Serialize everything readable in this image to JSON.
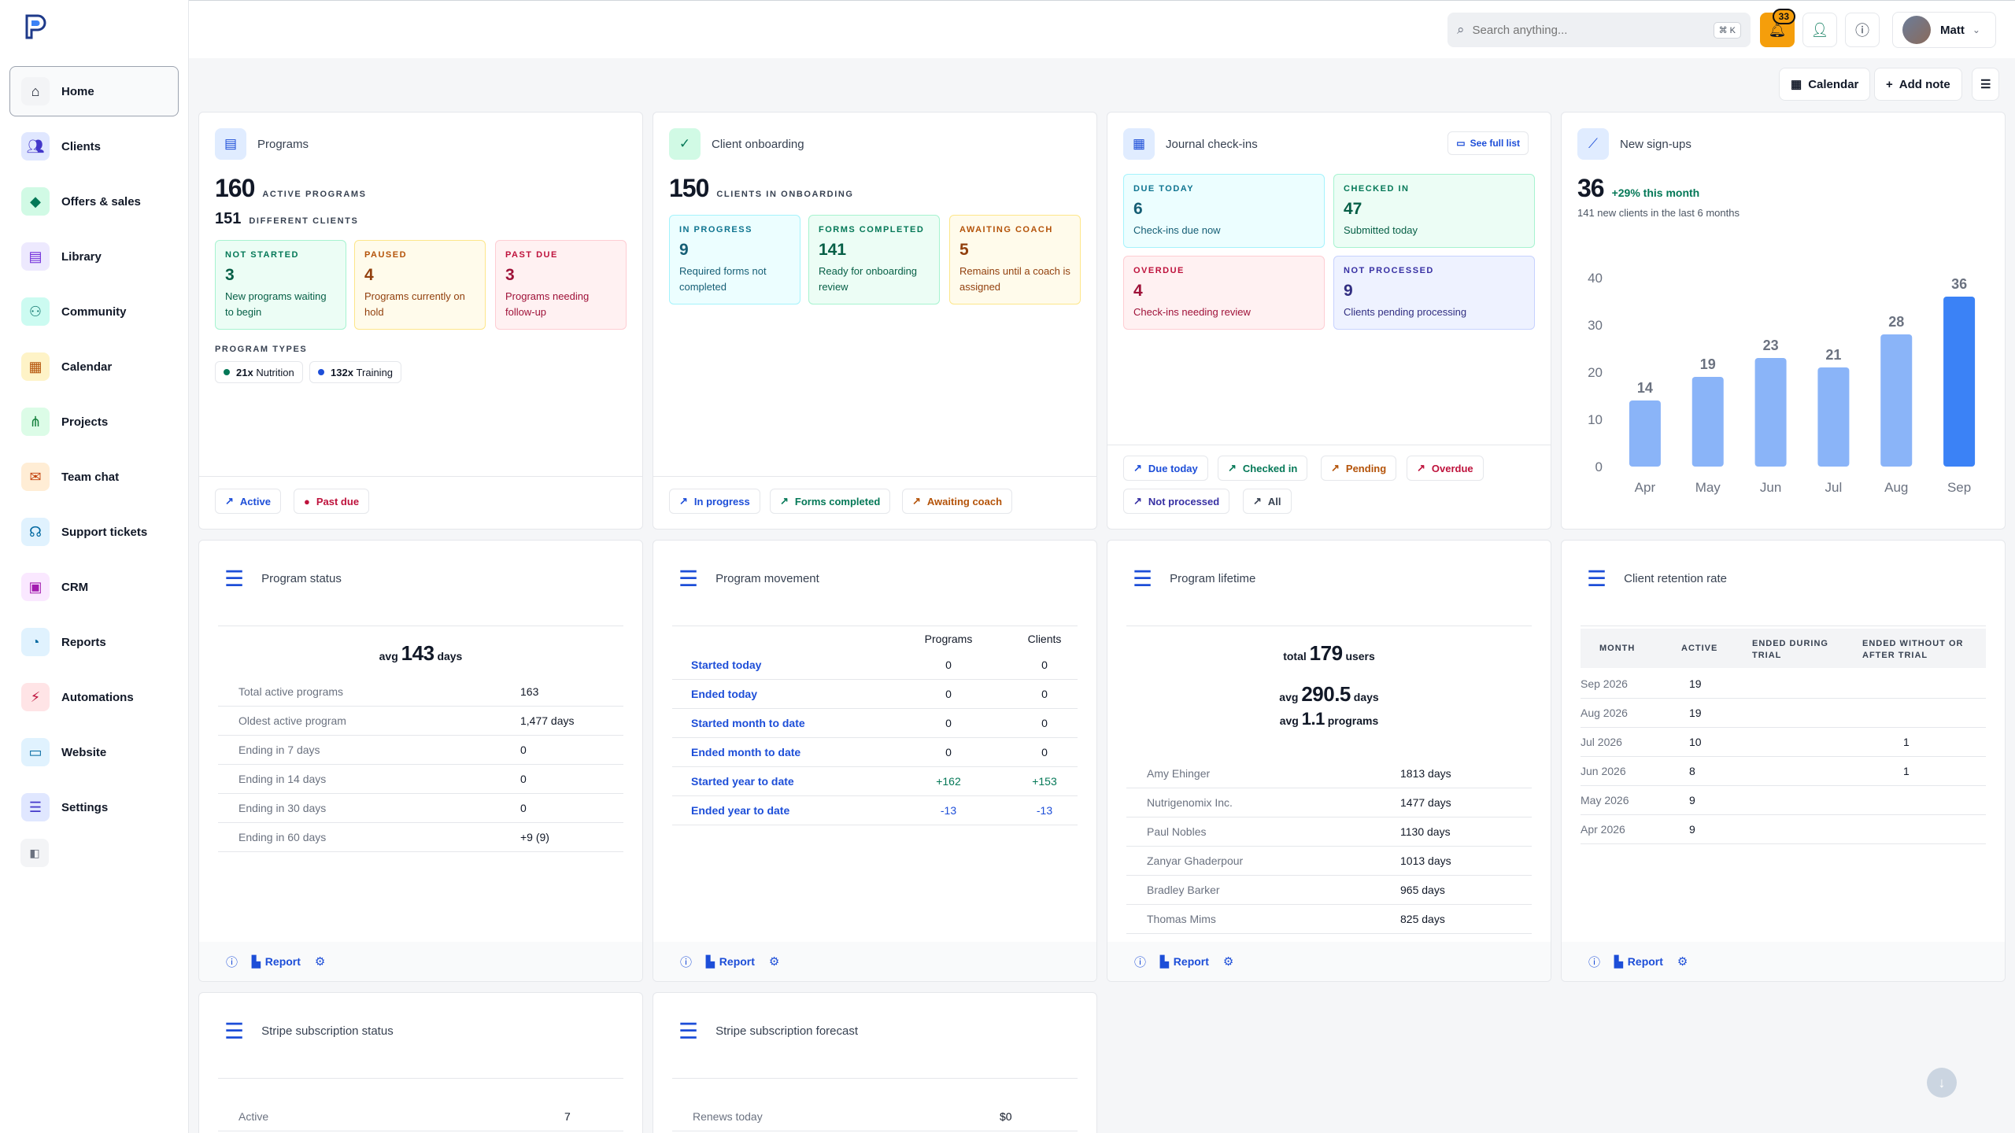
{
  "nav": {
    "items": [
      {
        "label": "Home",
        "icon": "home-icon"
      },
      {
        "label": "Clients",
        "icon": "users-icon"
      },
      {
        "label": "Offers & sales",
        "icon": "layers-icon"
      },
      {
        "label": "Library",
        "icon": "library-icon"
      },
      {
        "label": "Community",
        "icon": "community-icon"
      },
      {
        "label": "Calendar",
        "icon": "calendar-icon"
      },
      {
        "label": "Projects",
        "icon": "projects-icon"
      },
      {
        "label": "Team chat",
        "icon": "chat-icon"
      },
      {
        "label": "Support tickets",
        "icon": "headset-icon"
      },
      {
        "label": "CRM",
        "icon": "contact-icon"
      },
      {
        "label": "Reports",
        "icon": "pie-chart-icon"
      },
      {
        "label": "Automations",
        "icon": "bolt-icon"
      },
      {
        "label": "Website",
        "icon": "laptop-icon"
      },
      {
        "label": "Settings",
        "icon": "sliders-icon"
      }
    ]
  },
  "topbar": {
    "search_placeholder": "Search anything...",
    "search_shortcut": "⌘ K",
    "notifications_count": "33",
    "user_name": "Matt"
  },
  "actions": {
    "calendar": "Calendar",
    "add_note": "Add note"
  },
  "programs": {
    "title": "Programs",
    "active_count": "160",
    "active_label": "ACTIVE PROGRAMS",
    "clients_count": "151",
    "clients_label": "DIFFERENT CLIENTS",
    "tiles": [
      {
        "label": "NOT STARTED",
        "value": "3",
        "desc": "New programs waiting to begin"
      },
      {
        "label": "PAUSED",
        "value": "4",
        "desc": "Programs currently on hold"
      },
      {
        "label": "PAST DUE",
        "value": "3",
        "desc": "Programs needing follow-up"
      }
    ],
    "types_label": "PROGRAM TYPES",
    "types": [
      {
        "count": "21x",
        "name": "Nutrition"
      },
      {
        "count": "132x",
        "name": "Training"
      }
    ],
    "buttons": [
      "Active",
      "Past due"
    ]
  },
  "onboarding": {
    "title": "Client onboarding",
    "count": "150",
    "label": "CLIENTS IN ONBOARDING",
    "tiles": [
      {
        "label": "IN PROGRESS",
        "value": "9",
        "desc": "Required forms not completed"
      },
      {
        "label": "FORMS COMPLETED",
        "value": "141",
        "desc": "Ready for onboarding review"
      },
      {
        "label": "AWAITING COACH",
        "value": "5",
        "desc": "Remains until a coach is assigned"
      }
    ],
    "buttons": [
      "In progress",
      "Forms completed",
      "Awaiting coach"
    ]
  },
  "journal": {
    "title": "Journal check-ins",
    "see_full": "See full list",
    "tiles": [
      {
        "label": "DUE TODAY",
        "value": "6",
        "desc": "Check-ins due now"
      },
      {
        "label": "CHECKED IN",
        "value": "47",
        "desc": "Submitted today"
      },
      {
        "label": "OVERDUE",
        "value": "4",
        "desc": "Check-ins needing review"
      },
      {
        "label": "NOT PROCESSED",
        "value": "9",
        "desc": "Clients pending processing"
      }
    ],
    "buttons": [
      "Due today",
      "Checked in",
      "Pending",
      "Overdue",
      "Not processed",
      "All"
    ]
  },
  "signups": {
    "title": "New sign-ups",
    "count": "36",
    "change": "+29% this month",
    "subtitle": "141 new clients in the last 6 months"
  },
  "chart_data": {
    "type": "bar",
    "categories": [
      "Apr",
      "May",
      "Jun",
      "Jul",
      "Aug",
      "Sep"
    ],
    "values": [
      14,
      19,
      23,
      21,
      28,
      36
    ],
    "ylim": [
      0,
      40
    ],
    "yticks": [
      0,
      10,
      20,
      30,
      40
    ],
    "colors": {
      "bar": "#8ab4f8",
      "highlight": "#3b82f6"
    }
  },
  "program_status": {
    "title": "Program status",
    "avg_prefix": "avg",
    "avg_value": "143",
    "avg_unit": "days",
    "rows": [
      {
        "label": "Total active programs",
        "value": "163"
      },
      {
        "label": "Oldest active program",
        "value": "1,477 days"
      },
      {
        "label": "Ending in 7 days",
        "value": "0"
      },
      {
        "label": "Ending in 14 days",
        "value": "0"
      },
      {
        "label": "Ending in 30 days",
        "value": "0"
      },
      {
        "label": "Ending in 60 days",
        "value": "+9 (9)"
      }
    ]
  },
  "program_movement": {
    "title": "Program movement",
    "col1": "Programs",
    "col2": "Clients",
    "rows": [
      {
        "label": "Started today",
        "programs": "0",
        "clients": "0"
      },
      {
        "label": "Ended today",
        "programs": "0",
        "clients": "0"
      },
      {
        "label": "Started month to date",
        "programs": "0",
        "clients": "0"
      },
      {
        "label": "Ended month to date",
        "programs": "0",
        "clients": "0"
      },
      {
        "label": "Started year to date",
        "programs": "+162",
        "clients": "+153"
      },
      {
        "label": "Ended year to date",
        "programs": "-13",
        "clients": "-13"
      }
    ]
  },
  "program_lifetime": {
    "title": "Program lifetime",
    "total_prefix": "total",
    "total_value": "179",
    "total_unit": "users",
    "avg_prefix": "avg",
    "avg_days": "290.5",
    "avg_days_unit": "days",
    "avg_programs": "1.1",
    "avg_programs_unit": "programs",
    "rows": [
      {
        "name": "Amy Ehinger",
        "value": "1813 days"
      },
      {
        "name": "Nutrigenomix Inc.",
        "value": "1477 days"
      },
      {
        "name": "Paul Nobles",
        "value": "1130 days"
      },
      {
        "name": "Zanyar Ghaderpour",
        "value": "1013 days"
      },
      {
        "name": "Bradley Barker",
        "value": "965 days"
      },
      {
        "name": "Thomas Mims",
        "value": "825 days"
      }
    ]
  },
  "retention": {
    "title": "Client retention rate",
    "headers": [
      "MONTH",
      "ACTIVE",
      "ENDED DURING TRIAL",
      "ENDED WITHOUT OR AFTER TRIAL"
    ],
    "rows": [
      {
        "month": "Sep 2026",
        "active": "19",
        "during": "",
        "after": ""
      },
      {
        "month": "Aug 2026",
        "active": "19",
        "during": "",
        "after": ""
      },
      {
        "month": "Jul 2026",
        "active": "10",
        "during": "",
        "after": "1"
      },
      {
        "month": "Jun 2026",
        "active": "8",
        "during": "",
        "after": "1"
      },
      {
        "month": "May 2026",
        "active": "9",
        "during": "",
        "after": ""
      },
      {
        "month": "Apr 2026",
        "active": "9",
        "during": "",
        "after": ""
      }
    ]
  },
  "footer": {
    "report": "Report"
  },
  "stripe_status": {
    "title": "Stripe subscription status",
    "row_label": "Active",
    "row_value": "7"
  },
  "stripe_forecast": {
    "title": "Stripe subscription forecast",
    "row_label": "Renews today",
    "row_value": "$0"
  }
}
